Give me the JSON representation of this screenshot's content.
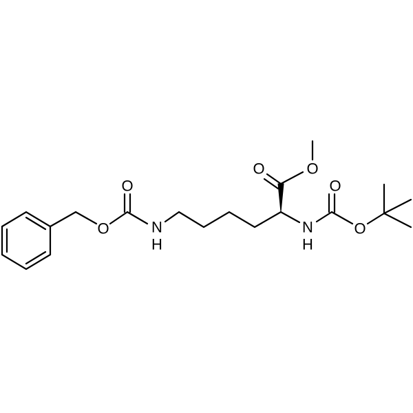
{
  "atoms": [
    {
      "label": "O"
    },
    {
      "label": "O"
    },
    {
      "label": "N"
    },
    {
      "label": "H"
    },
    {
      "label": "O"
    },
    {
      "label": "O"
    },
    {
      "label": "N"
    },
    {
      "label": "H"
    },
    {
      "label": "O"
    },
    {
      "label": "O"
    }
  ]
}
